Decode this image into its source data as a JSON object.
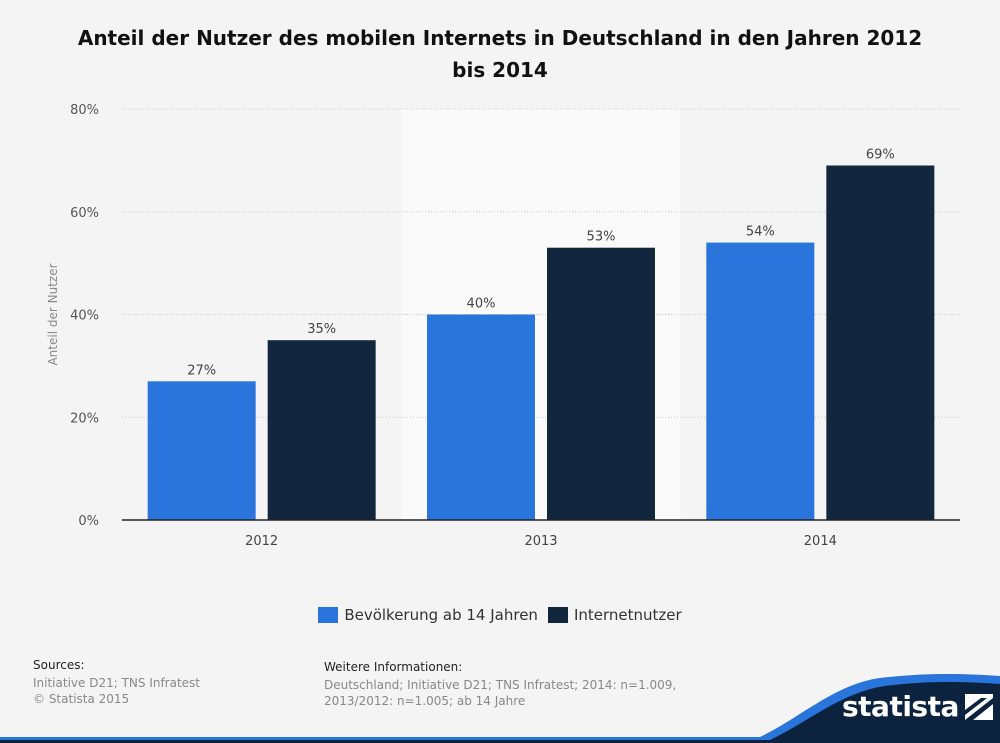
{
  "title": "Anteil der Nutzer des mobilen Internets in Deutschland in den Jahren 2012 bis 2014",
  "chart_data": {
    "type": "bar",
    "title": "Anteil der Nutzer des mobilen Internets in Deutschland in den Jahren 2012 bis 2014",
    "xlabel": "",
    "ylabel": "Anteil der Nutzer",
    "categories": [
      "2012",
      "2013",
      "2014"
    ],
    "series": [
      {
        "name": "Bevölkerung ab 14 Jahren",
        "values": [
          27,
          40,
          54
        ],
        "color": "#2a75dc"
      },
      {
        "name": "Internetnutzer",
        "values": [
          35,
          53,
          69
        ],
        "color": "#12263e"
      }
    ],
    "ylim": [
      0,
      80
    ],
    "yticks": [
      0,
      20,
      40,
      60,
      80
    ],
    "ytick_labels": [
      "0%",
      "20%",
      "40%",
      "60%",
      "80%"
    ],
    "value_suffix": "%",
    "grid": true,
    "legend": "bottom-center"
  },
  "legend": {
    "items": [
      {
        "label": "Bevölkerung ab 14 Jahren",
        "color": "#2a75dc"
      },
      {
        "label": "Internetnutzer",
        "color": "#12263e"
      }
    ]
  },
  "footer": {
    "sources_heading": "Sources:",
    "sources_line1": "Initiative D21; TNS Infratest",
    "sources_line2": "© Statista 2015",
    "info_heading": "Weitere Informationen:",
    "info_text": "Deutschland; Initiative D21; TNS Infratest; 2014: n=1.009, 2013/2012: n=1.005; ab 14 Jahre"
  },
  "brand": {
    "logo_text": "statista",
    "logo_icon": "statista-flag-icon",
    "accent": "#2a75dc",
    "dark": "#0c2340"
  }
}
